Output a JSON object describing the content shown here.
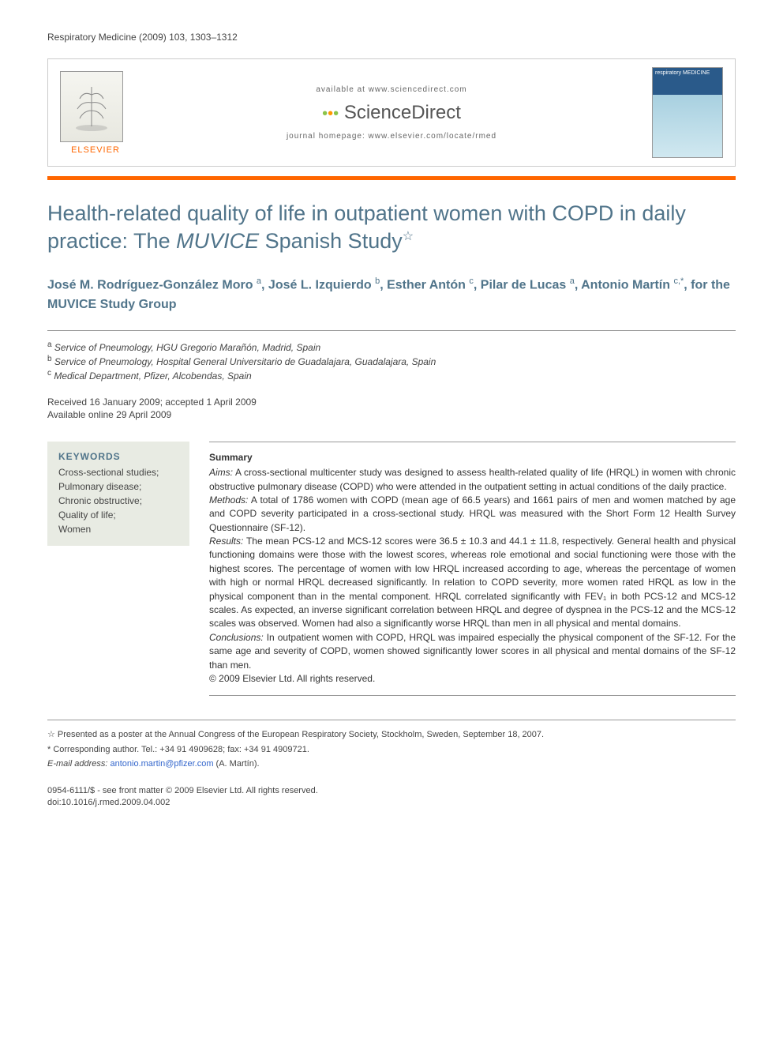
{
  "journal_ref": "Respiratory Medicine (2009) 103, 1303–1312",
  "header": {
    "available": "available at www.sciencedirect.com",
    "sciencedirect": "ScienceDirect",
    "homepage": "journal homepage: www.elsevier.com/locate/rmed",
    "elsevier": "ELSEVIER",
    "cover_label": "respiratory MEDICINE"
  },
  "title_main": "Health-related quality of life in outpatient women with COPD in daily practice: The ",
  "title_em": "MUVICE",
  "title_tail": " Spanish Study",
  "star": "☆",
  "authors_html": "José M. Rodríguez-González Moro <sup>a</sup>, José L. Izquierdo <sup>b</sup>, Esther Antón <sup>c</sup>, Pilar de Lucas <sup>a</sup>, Antonio Martín <sup>c,*</sup>, for the MUVICE Study Group",
  "affiliations": [
    {
      "sup": "a",
      "text": "Service of Pneumology, HGU Gregorio Marañón, Madrid, Spain"
    },
    {
      "sup": "b",
      "text": "Service of Pneumology, Hospital General Universitario de Guadalajara, Guadalajara, Spain"
    },
    {
      "sup": "c",
      "text": "Medical Department, Pfizer, Alcobendas, Spain"
    }
  ],
  "dates": {
    "received": "Received 16 January 2009; accepted 1 April 2009",
    "online": "Available online 29 April 2009"
  },
  "keywords": {
    "title": "KEYWORDS",
    "items": "Cross-sectional studies;\nPulmonary disease;\nChronic obstructive;\nQuality of life;\nWomen"
  },
  "abstract": {
    "heading": "Summary",
    "aims_label": "Aims:",
    "aims": " A cross-sectional multicenter study was designed to assess health-related quality of life (HRQL) in women with chronic obstructive pulmonary disease (COPD) who were attended in the outpatient setting in actual conditions of the daily practice.",
    "methods_label": "Methods:",
    "methods": " A total of 1786 women with COPD (mean age of 66.5 years) and 1661 pairs of men and women matched by age and COPD severity participated in a cross-sectional study. HRQL was measured with the Short Form 12 Health Survey Questionnaire (SF-12).",
    "results_label": "Results:",
    "results": " The mean PCS-12 and MCS-12 scores were 36.5 ± 10.3 and 44.1 ± 11.8, respectively. General health and physical functioning domains were those with the lowest scores, whereas role emotional and social functioning were those with the highest scores. The percentage of women with low HRQL increased according to age, whereas the percentage of women with high or normal HRQL decreased significantly. In relation to COPD severity, more women rated HRQL as low in the physical component than in the mental component. HRQL correlated significantly with FEV₁ in both PCS-12 and MCS-12 scales. As expected, an inverse significant correlation between HRQL and degree of dyspnea in the PCS-12 and the MCS-12 scales was observed. Women had also a significantly worse HRQL than men in all physical and mental domains.",
    "conclusions_label": "Conclusions:",
    "conclusions": " In outpatient women with COPD, HRQL was impaired especially the physical component of the SF-12. For the same age and severity of COPD, women showed significantly lower scores in all physical and mental domains of the SF-12 than men.",
    "copyright": "© 2009 Elsevier Ltd. All rights reserved."
  },
  "footnotes": {
    "presented": "☆ Presented as a poster at the Annual Congress of the European Respiratory Society, Stockholm, Sweden, September 18, 2007.",
    "corresponding": "* Corresponding author. Tel.: +34 91 4909628; fax: +34 91 4909721.",
    "email_label": "E-mail address: ",
    "email": "antonio.martin@pfizer.com",
    "email_tail": " (A. Martín)."
  },
  "copyright_block": {
    "line1": "0954-6111/$ - see front matter © 2009 Elsevier Ltd. All rights reserved.",
    "line2": "doi:10.1016/j.rmed.2009.04.002"
  },
  "colors": {
    "accent": "#50748a",
    "orange": "#ff6600",
    "keywords_bg": "#e8ebe3"
  }
}
